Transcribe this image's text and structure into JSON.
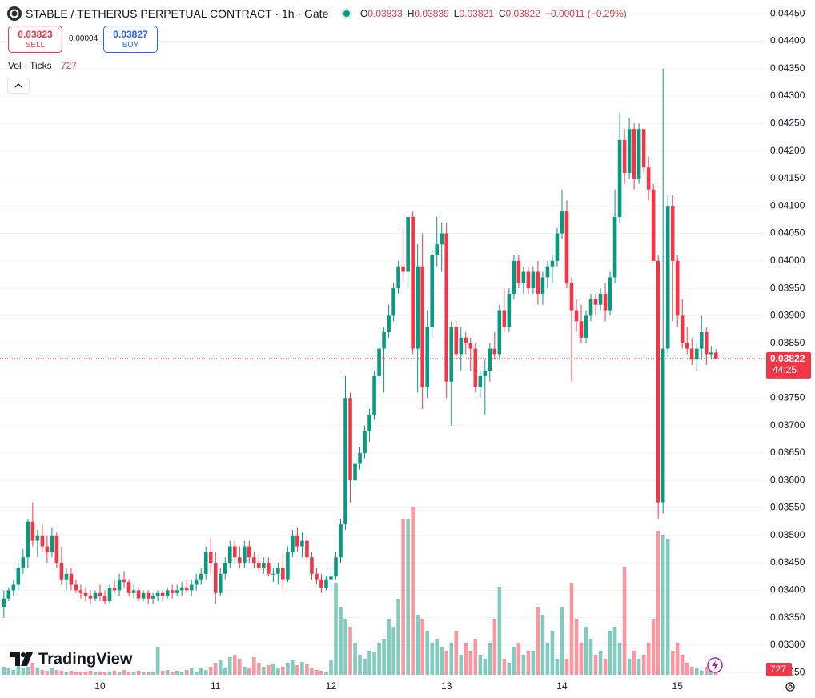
{
  "header": {
    "symbol": "STABLE / TETHERUS PERPETUAL CONTRACT · 1h · Gate",
    "ohlc": [
      {
        "key": "O",
        "value": 0.03833
      },
      {
        "key": "H",
        "value": 0.03839
      },
      {
        "key": "L",
        "value": 0.03821
      },
      {
        "key": "C",
        "value": 0.03822
      }
    ],
    "change": "−0.00011 (−0.29%)"
  },
  "trade": {
    "sell_price": 0.03823,
    "sell_label": "SELL",
    "spread": 4e-05,
    "buy_price": 0.03827,
    "buy_label": "BUY"
  },
  "indicator": {
    "name": "Vol · Ticks"
  },
  "watermark": "TradingView",
  "chart_data": {
    "type": "candlestick",
    "up_color": "#089981",
    "down_color": "#f23645",
    "categories": [
      null,
      null,
      null,
      null,
      null,
      null,
      null,
      null,
      null,
      null,
      null,
      null,
      null,
      null,
      null,
      null,
      null,
      null,
      null,
      null,
      "10",
      null,
      null,
      null,
      null,
      null,
      null,
      null,
      null,
      null,
      null,
      null,
      null,
      null,
      null,
      null,
      null,
      null,
      null,
      null,
      null,
      null,
      null,
      null,
      "11",
      null,
      null,
      null,
      null,
      null,
      null,
      null,
      null,
      null,
      null,
      null,
      null,
      null,
      null,
      null,
      null,
      null,
      null,
      null,
      null,
      null,
      null,
      null,
      "12",
      null,
      null,
      null,
      null,
      null,
      null,
      null,
      null,
      null,
      null,
      null,
      null,
      null,
      null,
      null,
      null,
      null,
      null,
      null,
      null,
      null,
      null,
      null,
      "13",
      null,
      null,
      null,
      null,
      null,
      null,
      null,
      null,
      null,
      null,
      null,
      null,
      null,
      null,
      null,
      null,
      null,
      null,
      null,
      null,
      null,
      null,
      null,
      "14",
      null,
      null,
      null,
      null,
      null,
      null,
      null,
      null,
      null,
      null,
      null,
      null,
      null,
      null,
      null,
      null,
      null,
      null,
      null,
      null,
      null,
      null,
      null,
      "15",
      null,
      null,
      null,
      null,
      null,
      null,
      null,
      null
    ],
    "open": [
      0.0337,
      0.03385,
      0.034,
      0.0341,
      0.0344,
      0.0346,
      0.03525,
      0.0349,
      0.035,
      0.0348,
      0.0347,
      0.035,
      0.0345,
      0.0342,
      0.0343,
      0.0341,
      0.034,
      0.03395,
      0.0339,
      0.03385,
      0.03395,
      0.0339,
      0.0338,
      0.03405,
      0.034,
      0.0342,
      0.03415,
      0.03395,
      0.034,
      0.03385,
      0.03395,
      0.03385,
      0.0339,
      0.03395,
      0.0339,
      0.034,
      0.03395,
      0.034,
      0.03405,
      0.034,
      0.0341,
      0.0342,
      0.0343,
      0.0347,
      0.0345,
      0.03395,
      0.0343,
      0.0345,
      0.0348,
      0.0346,
      0.0345,
      0.0348,
      0.0346,
      0.0345,
      0.0344,
      0.0345,
      0.0343,
      0.0343,
      0.0344,
      0.0342,
      0.0347,
      0.035,
      0.0348,
      0.0349,
      0.0346,
      0.0343,
      0.0342,
      0.03405,
      0.0342,
      0.03425,
      0.0346,
      0.0352,
      0.0375,
      0.036,
      0.0363,
      0.0365,
      0.0369,
      0.0372,
      0.0379,
      0.0384,
      0.0387,
      0.039,
      0.0395,
      0.0399,
      0.0398,
      0.0408,
      0.0384,
      0.0399,
      0.0377,
      0.0388,
      0.0401,
      0.0403,
      0.0405,
      0.0378,
      0.0388,
      0.0383,
      0.0386,
      0.0385,
      0.0384,
      0.0377,
      0.0379,
      0.038,
      0.0384,
      0.0383,
      0.0391,
      0.0388,
      0.0394,
      0.04,
      0.0396,
      0.0398,
      0.0395,
      0.0398,
      0.0394,
      0.0397,
      0.0399,
      0.04,
      0.0405,
      0.0409,
      0.0396,
      0.0391,
      0.0389,
      0.0386,
      0.039,
      0.0393,
      0.0392,
      0.0394,
      0.0391,
      0.0397,
      0.0408,
      0.0422,
      0.0416,
      0.0424,
      0.0415,
      0.0424,
      0.0417,
      0.0413,
      0.04,
      0.0356,
      0.0384,
      0.041,
      0.04,
      0.039,
      0.0385,
      0.0384,
      0.0382,
      0.0384,
      0.0387,
      0.0383,
      0.03833
    ],
    "high": [
      0.034,
      0.03405,
      0.0342,
      0.0345,
      0.03475,
      0.0353,
      0.0356,
      0.0351,
      0.0352,
      0.035,
      0.03515,
      0.03505,
      0.0348,
      0.0344,
      0.0344,
      0.0342,
      0.0341,
      0.03405,
      0.034,
      0.034,
      0.0341,
      0.034,
      0.0341,
      0.0342,
      0.0343,
      0.03435,
      0.0342,
      0.0341,
      0.03405,
      0.034,
      0.034,
      0.03395,
      0.034,
      0.034,
      0.03405,
      0.0341,
      0.0341,
      0.03415,
      0.0342,
      0.0342,
      0.0343,
      0.0344,
      0.0348,
      0.03495,
      0.0347,
      0.0344,
      0.0346,
      0.0349,
      0.0349,
      0.0348,
      0.0349,
      0.0349,
      0.0347,
      0.03465,
      0.0346,
      0.0346,
      0.0344,
      0.0345,
      0.0347,
      0.0348,
      0.0351,
      0.03515,
      0.03505,
      0.035,
      0.0347,
      0.0344,
      0.0343,
      0.03425,
      0.0344,
      0.0347,
      0.0353,
      0.0379,
      0.0376,
      0.0364,
      0.0366,
      0.037,
      0.0373,
      0.038,
      0.0385,
      0.0388,
      0.0392,
      0.0396,
      0.04,
      0.0406,
      0.0408,
      0.0409,
      0.0403,
      0.0405,
      0.0391,
      0.0402,
      0.0408,
      0.0407,
      0.0407,
      0.0389,
      0.0389,
      0.0388,
      0.0387,
      0.0386,
      0.0385,
      0.038,
      0.0382,
      0.0385,
      0.0387,
      0.0392,
      0.0395,
      0.0395,
      0.0401,
      0.0401,
      0.0399,
      0.0399,
      0.0399,
      0.04,
      0.0398,
      0.04,
      0.0401,
      0.0406,
      0.0413,
      0.0411,
      0.0397,
      0.0393,
      0.0392,
      0.0391,
      0.0394,
      0.0394,
      0.0395,
      0.0396,
      0.0398,
      0.0413,
      0.0427,
      0.0424,
      0.0426,
      0.0425,
      0.0425,
      0.0424,
      0.0419,
      0.0414,
      0.0401,
      0.0435,
      0.0412,
      0.0412,
      0.0401,
      0.0393,
      0.0388,
      0.0386,
      0.0385,
      0.039,
      0.0388,
      0.03845,
      0.03839
    ],
    "low": [
      0.0335,
      0.0338,
      0.0339,
      0.034,
      0.0343,
      0.0344,
      0.0348,
      0.0346,
      0.0347,
      0.0345,
      0.0346,
      0.0344,
      0.0341,
      0.034,
      0.034,
      0.03395,
      0.03385,
      0.0338,
      0.03375,
      0.0338,
      0.0338,
      0.03375,
      0.03375,
      0.03395,
      0.0339,
      0.03405,
      0.0339,
      0.03385,
      0.0338,
      0.0338,
      0.03375,
      0.03375,
      0.0338,
      0.0338,
      0.03385,
      0.03385,
      0.0339,
      0.0339,
      0.03395,
      0.0339,
      0.034,
      0.0341,
      0.0342,
      0.0343,
      0.03375,
      0.0339,
      0.0342,
      0.0344,
      0.0345,
      0.0344,
      0.0344,
      0.0345,
      0.0344,
      0.03435,
      0.0343,
      0.03425,
      0.03415,
      0.0341,
      0.034,
      0.03415,
      0.0346,
      0.0347,
      0.0346,
      0.0345,
      0.0342,
      0.0341,
      0.03395,
      0.034,
      0.03405,
      0.0342,
      0.0345,
      0.0351,
      0.0356,
      0.0359,
      0.0362,
      0.0364,
      0.0367,
      0.0371,
      0.0378,
      0.0376,
      0.0386,
      0.0389,
      0.0394,
      0.0396,
      0.0395,
      0.0383,
      0.0376,
      0.0373,
      0.0375,
      0.0386,
      0.0399,
      0.0398,
      0.0375,
      0.037,
      0.0382,
      0.038,
      0.0383,
      0.038,
      0.0376,
      0.0375,
      0.0372,
      0.0378,
      0.0382,
      0.0382,
      0.0387,
      0.0387,
      0.0393,
      0.0395,
      0.0394,
      0.0394,
      0.0394,
      0.0392,
      0.0392,
      0.0395,
      0.0396,
      0.0399,
      0.0404,
      0.0395,
      0.0378,
      0.0387,
      0.0385,
      0.0385,
      0.0389,
      0.039,
      0.0391,
      0.0389,
      0.039,
      0.0396,
      0.0407,
      0.0414,
      0.0415,
      0.0413,
      0.0414,
      0.0416,
      0.0411,
      0.04,
      0.0353,
      0.0354,
      0.0382,
      0.0389,
      0.0388,
      0.0384,
      0.0383,
      0.0381,
      0.038,
      0.0382,
      0.0381,
      0.0382,
      0.03821
    ],
    "close": [
      0.03385,
      0.034,
      0.0341,
      0.0344,
      0.0346,
      0.03525,
      0.0349,
      0.035,
      0.0348,
      0.0347,
      0.035,
      0.0345,
      0.0342,
      0.0343,
      0.0341,
      0.034,
      0.03395,
      0.0339,
      0.03385,
      0.03395,
      0.0339,
      0.0338,
      0.03405,
      0.034,
      0.0342,
      0.03415,
      0.03395,
      0.034,
      0.03385,
      0.03395,
      0.03385,
      0.0339,
      0.03395,
      0.0339,
      0.034,
      0.03395,
      0.034,
      0.03405,
      0.034,
      0.0341,
      0.0342,
      0.0343,
      0.0347,
      0.0345,
      0.03395,
      0.0343,
      0.0345,
      0.0348,
      0.0346,
      0.0345,
      0.0348,
      0.0346,
      0.0345,
      0.0344,
      0.0345,
      0.0343,
      0.0343,
      0.0344,
      0.0342,
      0.0347,
      0.035,
      0.0348,
      0.0349,
      0.0346,
      0.0343,
      0.0342,
      0.03405,
      0.0342,
      0.03425,
      0.0346,
      0.0352,
      0.0375,
      0.036,
      0.0363,
      0.0365,
      0.0369,
      0.0372,
      0.0379,
      0.0384,
      0.0387,
      0.039,
      0.0395,
      0.0399,
      0.0398,
      0.0408,
      0.0384,
      0.0399,
      0.0377,
      0.0388,
      0.0401,
      0.0403,
      0.0405,
      0.0378,
      0.0388,
      0.0383,
      0.0386,
      0.0385,
      0.0384,
      0.0377,
      0.0379,
      0.038,
      0.0384,
      0.0383,
      0.0391,
      0.0388,
      0.0394,
      0.04,
      0.0396,
      0.0398,
      0.0395,
      0.0398,
      0.0394,
      0.0397,
      0.0399,
      0.04,
      0.0405,
      0.0409,
      0.0396,
      0.0391,
      0.0389,
      0.0386,
      0.039,
      0.0393,
      0.0392,
      0.0394,
      0.0391,
      0.0397,
      0.0408,
      0.0422,
      0.0416,
      0.0424,
      0.0415,
      0.0424,
      0.0417,
      0.0413,
      0.04,
      0.0356,
      0.0384,
      0.041,
      0.04,
      0.039,
      0.0385,
      0.0384,
      0.0382,
      0.0384,
      0.0387,
      0.0383,
      0.03833,
      0.03822
    ],
    "volume": [
      600,
      480,
      360,
      720,
      480,
      600,
      900,
      480,
      360,
      300,
      480,
      360,
      300,
      240,
      300,
      240,
      180,
      240,
      300,
      180,
      240,
      180,
      240,
      300,
      180,
      360,
      240,
      180,
      300,
      180,
      240,
      180,
      2100,
      300,
      360,
      240,
      300,
      240,
      360,
      480,
      240,
      480,
      360,
      600,
      900,
      1080,
      480,
      1320,
      1500,
      1200,
      600,
      480,
      1320,
      900,
      600,
      720,
      840,
      480,
      600,
      900,
      1080,
      720,
      960,
      840,
      480,
      360,
      300,
      240,
      1080,
      6900,
      5100,
      4200,
      3600,
      2400,
      1500,
      1200,
      1800,
      1680,
      2400,
      2700,
      4200,
      3600,
      5700,
      11700,
      11700,
      12600,
      4500,
      4200,
      3300,
      2400,
      2700,
      2100,
      1800,
      2400,
      3300,
      1500,
      2400,
      1800,
      2700,
      1500,
      1200,
      2400,
      4200,
      6600,
      1200,
      900,
      2100,
      2400,
      1500,
      1800,
      1800,
      5100,
      4500,
      2400,
      3300,
      1200,
      5100,
      1200,
      6900,
      4200,
      2400,
      3600,
      2700,
      1500,
      1800,
      1200,
      3300,
      3600,
      2400,
      8100,
      1200,
      1800,
      1200,
      1500,
      2400,
      4200,
      10800,
      10500,
      10200,
      1800,
      2400,
      1500,
      900,
      600,
      480,
      300,
      600,
      480,
      727
    ],
    "ylim": [
      0.03246,
      0.04475
    ],
    "yticks": [
      {
        "value": 0.0325,
        "label": "0.03250"
      },
      {
        "value": 0.033,
        "label": "0.03300"
      },
      {
        "value": 0.0335,
        "label": "0.03350"
      },
      {
        "value": 0.034,
        "label": "0.03400"
      },
      {
        "value": 0.0345,
        "label": "0.03450"
      },
      {
        "value": 0.035,
        "label": "0.03500"
      },
      {
        "value": 0.0355,
        "label": "0.03550"
      },
      {
        "value": 0.036,
        "label": "0.03600"
      },
      {
        "value": 0.0365,
        "label": "0.03650"
      },
      {
        "value": 0.037,
        "label": "0.03700"
      },
      {
        "value": 0.0375,
        "label": "0.03750"
      },
      {
        "value": 0.038,
        "label": "0.03800"
      },
      {
        "value": 0.0385,
        "label": "0.03850"
      },
      {
        "value": 0.039,
        "label": "0.03900"
      },
      {
        "value": 0.0395,
        "label": "0.03950"
      },
      {
        "value": 0.04,
        "label": "0.04000"
      },
      {
        "value": 0.0405,
        "label": "0.04050"
      },
      {
        "value": 0.041,
        "label": "0.04100"
      },
      {
        "value": 0.0415,
        "label": "0.04150"
      },
      {
        "value": 0.042,
        "label": "0.04200"
      },
      {
        "value": 0.0425,
        "label": "0.04250"
      },
      {
        "value": 0.043,
        "label": "0.04300"
      },
      {
        "value": 0.0435,
        "label": "0.04350"
      },
      {
        "value": 0.044,
        "label": "0.04400"
      },
      {
        "value": 0.0445,
        "label": "0.04450"
      }
    ],
    "grid": true,
    "last_price": 0.03822,
    "countdown": "44:25"
  }
}
